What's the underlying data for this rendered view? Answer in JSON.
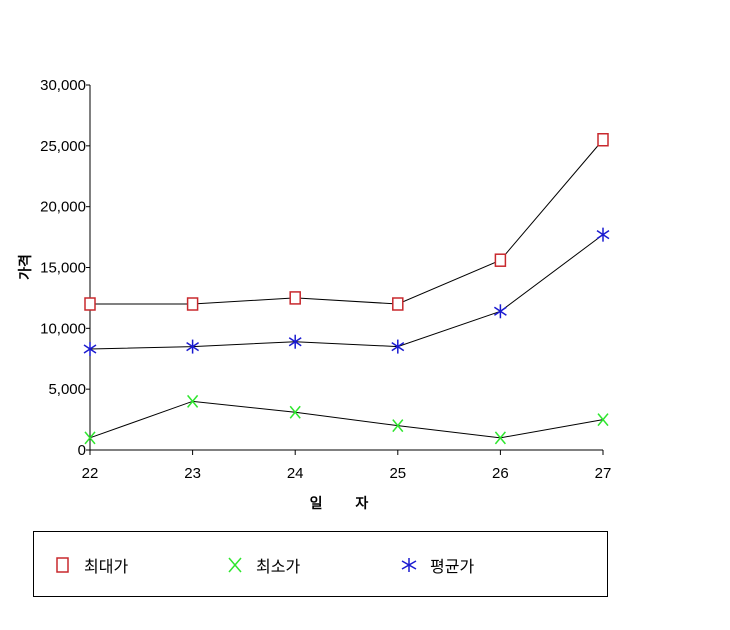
{
  "chart_data": {
    "type": "line",
    "title": "",
    "xlabel": "일 자",
    "ylabel": "가격",
    "categories": [
      "22",
      "23",
      "24",
      "25",
      "26",
      "27"
    ],
    "yticks": [
      "0",
      "5,000",
      "10,000",
      "15,000",
      "20,000",
      "25,000",
      "30,000"
    ],
    "ylim": [
      0,
      30000
    ],
    "grid": false,
    "legend_position": "bottom",
    "series": [
      {
        "name": "최대가",
        "marker": "square",
        "color": "#c8282d",
        "values": [
          12000,
          12000,
          12500,
          12000,
          15600,
          25500
        ]
      },
      {
        "name": "최소가",
        "marker": "x",
        "color": "#2ee62e",
        "values": [
          1000,
          4000,
          3100,
          2000,
          1000,
          2500
        ]
      },
      {
        "name": "평균가",
        "marker": "asterisk",
        "color": "#1a1ad0",
        "values": [
          8300,
          8500,
          8900,
          8500,
          11400,
          17700
        ]
      }
    ]
  }
}
